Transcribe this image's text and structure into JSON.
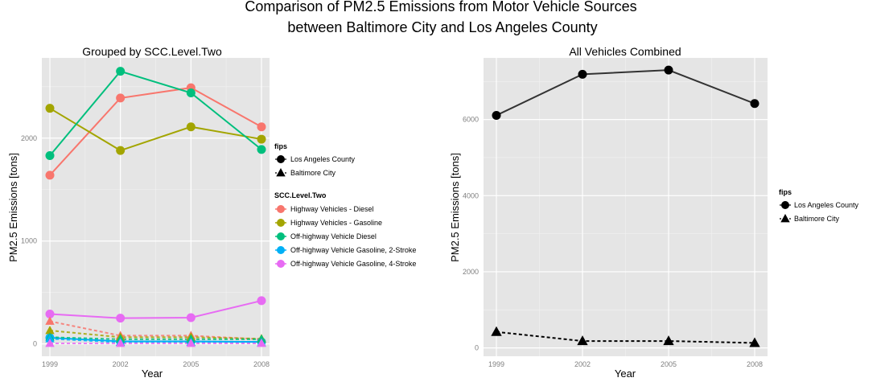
{
  "figure": {
    "title_line1": "Comparison of PM2.5 Emissions from Motor Vehicle Sources",
    "title_line2": "between Baltimore City and Los Angeles County"
  },
  "colors": {
    "panel_bg": "#e5e5e5",
    "grid": "#ffffff",
    "tick_text": "#7f7f7f",
    "left_series": [
      "#f8766d",
      "#a3a500",
      "#00bf7d",
      "#00b0f6",
      "#e76bf3"
    ],
    "right_la": "#333333",
    "right_balt": "#000000"
  },
  "legend": {
    "fips_title": "fips",
    "fips_items": [
      "Los Angeles County",
      "Baltimore City"
    ],
    "scc_title": "SCC.Level.Two",
    "scc_items": [
      "Highway Vehicles - Diesel",
      "Highway Vehicles - Gasoline",
      "Off-highway Vehicle Diesel",
      "Off-highway Vehicle Gasoline, 2-Stroke",
      "Off-highway Vehicle Gasoline, 4-Stroke"
    ]
  },
  "chart_data": [
    {
      "type": "line",
      "title": "Grouped by SCC.Level.Two",
      "xlabel": "Year",
      "ylabel": "PM2.5 Emissions [tons]",
      "x": [
        1999,
        2002,
        2005,
        2008
      ],
      "x_ticks": [
        "1999",
        "2002",
        "2005",
        "2008"
      ],
      "y_ticks": [
        0,
        1000,
        2000
      ],
      "y_tick_labels": [
        "0",
        "1000",
        "2000"
      ],
      "ylim": [
        -120,
        2780
      ],
      "grid": true,
      "legend_position": "right",
      "series": [
        {
          "name": "Highway Vehicles - Diesel",
          "fips": "Los Angeles County",
          "values": [
            1640,
            2390,
            2490,
            2110
          ]
        },
        {
          "name": "Highway Vehicles - Gasoline",
          "fips": "Los Angeles County",
          "values": [
            2290,
            1880,
            2110,
            1990
          ]
        },
        {
          "name": "Off-highway Vehicle Diesel",
          "fips": "Los Angeles County",
          "values": [
            1830,
            2650,
            2440,
            1890
          ]
        },
        {
          "name": "Off-highway Vehicle Gasoline, 2-Stroke",
          "fips": "Los Angeles County",
          "values": [
            60,
            25,
            25,
            20
          ]
        },
        {
          "name": "Off-highway Vehicle Gasoline, 4-Stroke",
          "fips": "Los Angeles County",
          "values": [
            290,
            250,
            255,
            420
          ]
        },
        {
          "name": "Highway Vehicles - Diesel",
          "fips": "Baltimore City",
          "values": [
            220,
            80,
            80,
            45
          ]
        },
        {
          "name": "Highway Vehicles - Gasoline",
          "fips": "Baltimore City",
          "values": [
            130,
            65,
            65,
            50
          ]
        },
        {
          "name": "Off-highway Vehicle Diesel",
          "fips": "Baltimore City",
          "values": [
            65,
            45,
            45,
            45
          ]
        },
        {
          "name": "Off-highway Vehicle Gasoline, 2-Stroke",
          "fips": "Baltimore City",
          "values": [
            50,
            15,
            15,
            10
          ]
        },
        {
          "name": "Off-highway Vehicle Gasoline, 4-Stroke",
          "fips": "Baltimore City",
          "values": [
            5,
            5,
            5,
            5
          ]
        }
      ]
    },
    {
      "type": "line",
      "title": "All Vehicles Combined",
      "xlabel": "Year",
      "ylabel": "PM2.5 Emissions [tons]",
      "x": [
        1999,
        2002,
        2005,
        2008
      ],
      "x_ticks": [
        "1999",
        "2002",
        "2005",
        "2008"
      ],
      "y_ticks": [
        0,
        2000,
        4000,
        6000
      ],
      "y_tick_labels": [
        "0",
        "2000",
        "4000",
        "6000"
      ],
      "ylim": [
        -220,
        7620
      ],
      "grid": true,
      "legend_position": "right",
      "legend_title": "fips",
      "series": [
        {
          "name": "Los Angeles County",
          "values": [
            6110,
            7190,
            7300,
            6420
          ]
        },
        {
          "name": "Baltimore City",
          "values": [
            420,
            180,
            180,
            130
          ]
        }
      ]
    }
  ]
}
